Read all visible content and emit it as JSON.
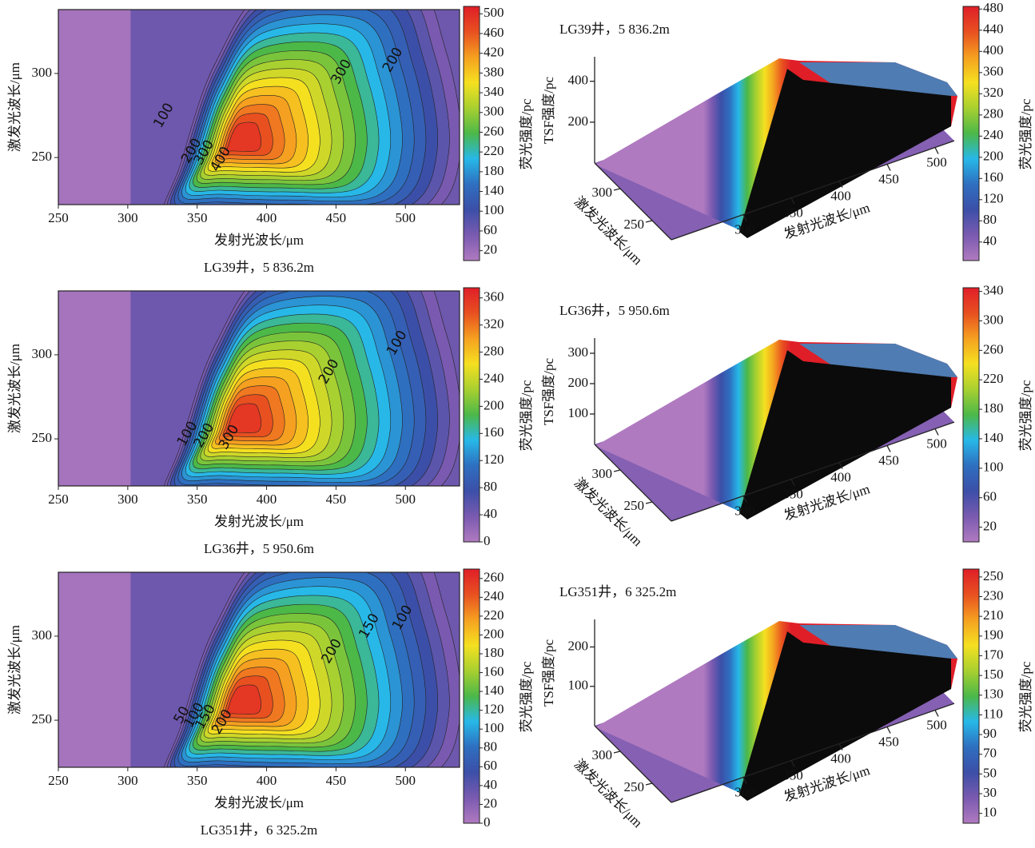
{
  "chart_data": [
    {
      "type": "contour",
      "xlabel": "发射光波长/μm",
      "ylabel": "激发光波长/μm",
      "caption": "LG39井，5 836.2m",
      "xlim": [
        250,
        539
      ],
      "xticks": [
        250,
        300,
        350,
        400,
        450,
        500
      ],
      "ylim": [
        222,
        338
      ],
      "yticks": [
        250,
        300
      ],
      "colorbar": {
        "label": "荧光强度/pc",
        "lim": [
          0,
          515
        ],
        "ticks": [
          20,
          60,
          100,
          140,
          180,
          220,
          260,
          300,
          340,
          380,
          420,
          460,
          500
        ],
        "colors": [
          "#b07ac0",
          "#7a5ab0",
          "#3c4fa8",
          "#2e6fc0",
          "#27b8e8",
          "#4cb848",
          "#a8d030",
          "#f5e020",
          "#f5a020",
          "#e85020",
          "#e01e28"
        ]
      },
      "contour_labels": [
        {
          "x": 326,
          "y": 275,
          "value": 100
        },
        {
          "x": 346,
          "y": 254,
          "value": 200
        },
        {
          "x": 355,
          "y": 253,
          "value": 300
        },
        {
          "x": 367,
          "y": 249,
          "value": 400
        },
        {
          "x": 454,
          "y": 301,
          "value": 300
        },
        {
          "x": 491,
          "y": 308,
          "value": 200
        }
      ]
    },
    {
      "type": "surface3d",
      "title": "LG39井，5 836.2m",
      "xlabel": "发射光波长/μm",
      "ylabel": "激发光波长/μm",
      "zlabel": "TSF强度/pc",
      "xlim": [
        225,
        520
      ],
      "xticks": [
        300,
        350,
        400,
        450,
        500
      ],
      "ylim": [
        220,
        340
      ],
      "yticks": [
        250,
        300
      ],
      "zlim": [
        0,
        520
      ],
      "zticks": [
        200,
        400
      ],
      "colorbar": {
        "label": "荧光强度/pc",
        "lim": [
          5,
          485
        ],
        "ticks": [
          40,
          80,
          120,
          160,
          200,
          240,
          280,
          320,
          360,
          400,
          440,
          480
        ],
        "colors": [
          "#b07ac0",
          "#7a5ab0",
          "#3c4fa8",
          "#2e6fc0",
          "#27b8e8",
          "#4cb848",
          "#a8d030",
          "#f5e020",
          "#f5a020",
          "#e85020",
          "#e01e28"
        ]
      }
    },
    {
      "type": "contour",
      "xlabel": "发射光波长/μm",
      "ylabel": "激发光波长/μm",
      "caption": "LG36井，5 950.6m",
      "xlim": [
        250,
        539
      ],
      "xticks": [
        250,
        300,
        350,
        400,
        450,
        500
      ],
      "ylim": [
        222,
        338
      ],
      "yticks": [
        250,
        300
      ],
      "colorbar": {
        "label": "荧光强度/pc",
        "lim": [
          0,
          375
        ],
        "ticks": [
          0,
          40,
          80,
          120,
          160,
          200,
          240,
          280,
          320,
          360
        ],
        "colors": [
          "#b07ac0",
          "#7a5ab0",
          "#3c4fa8",
          "#2e6fc0",
          "#27b8e8",
          "#4cb848",
          "#a8d030",
          "#f5e020",
          "#f5a020",
          "#e85020",
          "#e01e28"
        ]
      },
      "contour_labels": [
        {
          "x": 343,
          "y": 253,
          "value": 100
        },
        {
          "x": 355,
          "y": 252,
          "value": 200
        },
        {
          "x": 373,
          "y": 251,
          "value": 300
        },
        {
          "x": 445,
          "y": 290,
          "value": 200
        },
        {
          "x": 494,
          "y": 307,
          "value": 100
        }
      ]
    },
    {
      "type": "surface3d",
      "title": "LG36井，5 950.6m",
      "xlabel": "发射光波长/μm",
      "ylabel": "激发光波长/μm",
      "zlabel": "TSF强度/pc",
      "xlim": [
        225,
        520
      ],
      "xticks": [
        300,
        350,
        400,
        450,
        500
      ],
      "ylim": [
        220,
        340
      ],
      "yticks": [
        250,
        300
      ],
      "zlim": [
        0,
        350
      ],
      "zticks": [
        100,
        200,
        300
      ],
      "colorbar": {
        "label": "荧光强度/pc",
        "lim": [
          0,
          345
        ],
        "ticks": [
          20,
          60,
          100,
          140,
          180,
          220,
          260,
          300,
          340
        ],
        "colors": [
          "#b07ac0",
          "#7a5ab0",
          "#3c4fa8",
          "#2e6fc0",
          "#27b8e8",
          "#4cb848",
          "#a8d030",
          "#f5e020",
          "#f5a020",
          "#e85020",
          "#e01e28"
        ]
      }
    },
    {
      "type": "contour",
      "xlabel": "发射光波长/μm",
      "ylabel": "激发光波长/μm",
      "caption": "LG351井，6 325.2m",
      "xlim": [
        250,
        539
      ],
      "xticks": [
        250,
        300,
        350,
        400,
        450,
        500
      ],
      "ylim": [
        222,
        338
      ],
      "yticks": [
        250,
        300
      ],
      "colorbar": {
        "label": "荧光强度/pc",
        "lim": [
          0,
          270
        ],
        "ticks": [
          0,
          20,
          40,
          60,
          80,
          100,
          120,
          140,
          160,
          180,
          200,
          220,
          240,
          260
        ],
        "colors": [
          "#b07ac0",
          "#7a5ab0",
          "#3c4fa8",
          "#2e6fc0",
          "#27b8e8",
          "#4cb848",
          "#a8d030",
          "#f5e020",
          "#f5a020",
          "#e85020",
          "#e01e28"
        ]
      },
      "contour_labels": [
        {
          "x": 339,
          "y": 253,
          "value": 50
        },
        {
          "x": 348,
          "y": 253,
          "value": 100
        },
        {
          "x": 356,
          "y": 252,
          "value": 150
        },
        {
          "x": 368,
          "y": 249,
          "value": 200
        },
        {
          "x": 447,
          "y": 291,
          "value": 200
        },
        {
          "x": 474,
          "y": 306,
          "value": 150
        },
        {
          "x": 498,
          "y": 311,
          "value": 100
        }
      ]
    },
    {
      "type": "surface3d",
      "title": "LG351井，6 325.2m",
      "xlabel": "发射光波长/μm",
      "ylabel": "激发光波长/μm",
      "zlabel": "TSF强度/pc",
      "xlim": [
        225,
        520
      ],
      "xticks": [
        300,
        350,
        400,
        450,
        500
      ],
      "ylim": [
        220,
        340
      ],
      "yticks": [
        250,
        300
      ],
      "zlim": [
        0,
        270
      ],
      "zticks": [
        100,
        200
      ],
      "colorbar": {
        "label": "荧光强度/pc",
        "lim": [
          0,
          258
        ],
        "ticks": [
          10,
          30,
          50,
          70,
          90,
          110,
          130,
          150,
          170,
          190,
          210,
          230,
          250
        ],
        "colors": [
          "#b07ac0",
          "#7a5ab0",
          "#3c4fa8",
          "#2e6fc0",
          "#27b8e8",
          "#4cb848",
          "#a8d030",
          "#f5e020",
          "#f5a020",
          "#e85020",
          "#e01e28"
        ]
      }
    }
  ]
}
